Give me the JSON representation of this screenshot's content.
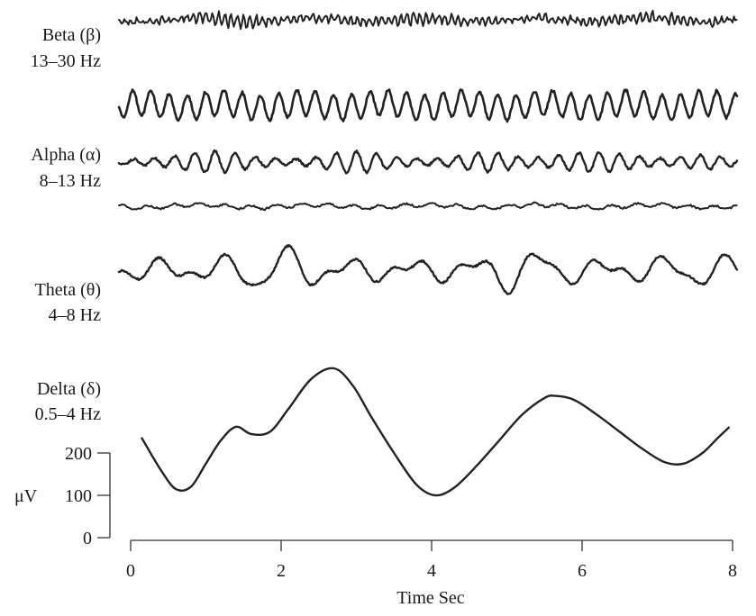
{
  "chart_data": {
    "type": "line",
    "bands": [
      {
        "id": "beta",
        "name": "Beta (β)",
        "range": "13–30 Hz"
      },
      {
        "id": "alpha",
        "name": "Alpha (α)",
        "range": "8–13 Hz"
      },
      {
        "id": "theta",
        "name": "Theta (θ)",
        "range": "4–8 Hz"
      },
      {
        "id": "delta",
        "name": "Delta (δ)",
        "range": "0.5–4 Hz"
      }
    ],
    "series": [
      {
        "band": "beta",
        "style": "irregular low-amplitude fast activity"
      },
      {
        "band": "beta",
        "style": "regular high-amplitude fast rhythm"
      },
      {
        "band": "alpha",
        "style": "waxing and waning spindles"
      },
      {
        "band": "alpha",
        "style": "nearly flat trace"
      },
      {
        "band": "theta",
        "style": "irregular slow waves"
      },
      {
        "band": "delta",
        "x": [
          0.15,
          0.4,
          0.6,
          0.8,
          1.0,
          1.2,
          1.4,
          1.6,
          1.85,
          2.1,
          2.4,
          2.7,
          2.95,
          3.2,
          3.5,
          3.8,
          4.05,
          4.3,
          4.6,
          4.9,
          5.2,
          5.5,
          5.65,
          5.9,
          6.2,
          6.5,
          6.8,
          7.1,
          7.35,
          7.6,
          7.8,
          7.95
        ],
        "y": [
          235,
          160,
          115,
          120,
          175,
          230,
          262,
          245,
          250,
          305,
          375,
          400,
          360,
          285,
          200,
          125,
          100,
          118,
          170,
          230,
          290,
          330,
          335,
          325,
          290,
          250,
          210,
          178,
          175,
          200,
          235,
          260
        ]
      }
    ],
    "xlabel": "Time Sec",
    "xticks": [
      0,
      2,
      4,
      6,
      8
    ],
    "xlim": [
      0,
      8
    ],
    "ylabel": "μV",
    "yticks": [
      0,
      100,
      200
    ],
    "grid": false,
    "legend": "none",
    "colors": {
      "trace": "#222222",
      "axis": "#333333",
      "text": "#1a1a1a"
    }
  }
}
